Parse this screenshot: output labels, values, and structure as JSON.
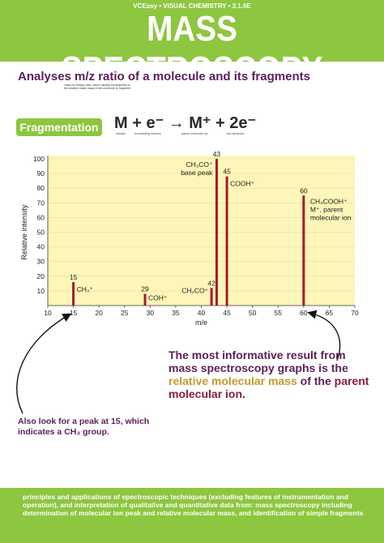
{
  "header": {
    "tag": "VCEasy • VISUAL CHEMISTRY • 3.1.6E",
    "title": "MASS SPECTROSCOPY",
    "color": "#8dc63f"
  },
  "subtitle": "Analyses m/z ratio of a molecule and its fragments",
  "note": "mass-to-charge ratio, which usually corresponds to the relative molar mass of the molecule or fragment",
  "fragmentation": {
    "label": "Fragmentation",
    "equation": "M + e⁻ → M⁺ + 2e⁻",
    "sub_labels": [
      "sample",
      "bombarding electron",
      "parent molecular ion",
      "two electrons"
    ]
  },
  "chart_data": {
    "type": "bar",
    "xlabel": "m/e",
    "ylabel": "Relative intensity",
    "xlim": [
      10,
      70
    ],
    "ylim": [
      0,
      100
    ],
    "x_ticks": [
      10,
      15,
      20,
      25,
      30,
      35,
      40,
      45,
      50,
      55,
      60,
      65,
      70
    ],
    "y_ticks": [
      10,
      20,
      30,
      40,
      50,
      60,
      70,
      80,
      90,
      100
    ],
    "peaks": [
      {
        "x": 15,
        "y": 16,
        "annotation": "CH₃⁺"
      },
      {
        "x": 29,
        "y": 8,
        "annotation": "COH⁺"
      },
      {
        "x": 42,
        "y": 12,
        "annotation": "CH₂CO⁺"
      },
      {
        "x": 43,
        "y": 100,
        "annotation": "CH₃CO⁺ base peak"
      },
      {
        "x": 45,
        "y": 88,
        "annotation": "COOH⁺"
      },
      {
        "x": 60,
        "y": 75,
        "annotation": "CH₃COOH⁺ M⁺, parent molecular ion"
      }
    ],
    "plot_bg": "#fdf6b8",
    "bar_color": "#a6192e"
  },
  "callouts": {
    "main": {
      "part1": "The most informative result from mass spectroscopy graphs is the ",
      "highlight1": "relative molecular mass",
      "part2": " of the ",
      "highlight2": "parent molecular ion",
      "part3": "."
    },
    "side": "Also look for a peak at 15, which indicates a CH₃ group."
  },
  "footer": "principles and applications of spectroscopic techniques (excluding features of instrumentation and operation), and interpretation of qualitative and quantitative data from: mass spectroscopy including determination of molecular ion peak and relative molecular mass, and identification of simple fragments"
}
